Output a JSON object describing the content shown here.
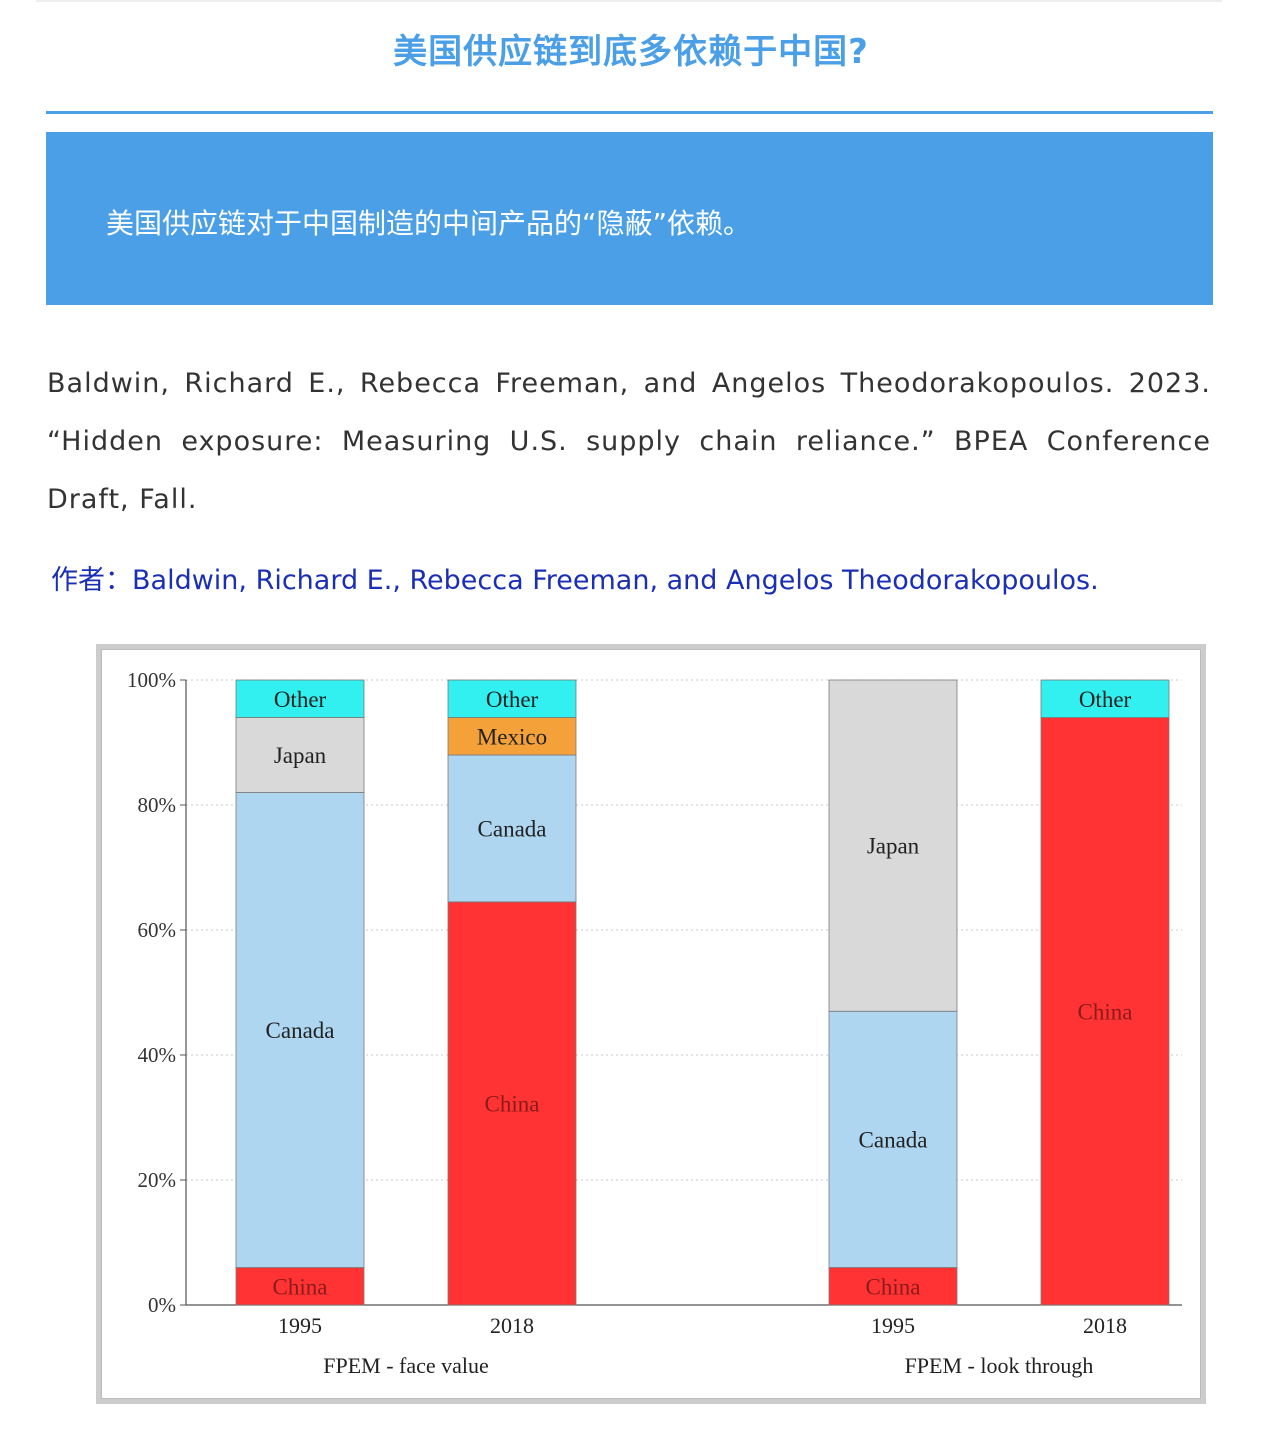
{
  "header": {
    "title": "美国供应链到底多依赖于中国?"
  },
  "banner": {
    "text": "美国供应链对于中国制造的中间产品的“隐蔽”依赖。"
  },
  "citation": {
    "text": "Baldwin, Richard E., Rebecca Freeman, and Angelos Theodorakopoulos. 2023. “Hidden exposure: Measuring U.S. supply chain reliance.”  BPEA Conference Draft, Fall."
  },
  "author": {
    "text": "作者：Baldwin, Richard E., Rebecca Freeman, and Angelos Theodorakopoulos."
  },
  "colors": {
    "accent": "#4a9fe6",
    "author_link": "#1a2fb5",
    "China": "#ff3333",
    "Canada": "#aed6f1",
    "Japan": "#d9d9d9",
    "Mexico": "#f4a13a",
    "Other": "#33f0f0"
  },
  "chart_data": {
    "type": "bar",
    "stacked": true,
    "ylim": [
      0,
      100
    ],
    "y_ticks": [
      "0%",
      "20%",
      "40%",
      "60%",
      "80%",
      "100%"
    ],
    "grid": true,
    "groups": [
      {
        "label": "FPEM - face value",
        "bars": [
          {
            "year": "1995",
            "segments": [
              {
                "name": "China",
                "value": 6
              },
              {
                "name": "Canada",
                "value": 76
              },
              {
                "name": "Japan",
                "value": 12
              },
              {
                "name": "Other",
                "value": 6
              }
            ]
          },
          {
            "year": "2018",
            "segments": [
              {
                "name": "China",
                "value": 64.5
              },
              {
                "name": "Canada",
                "value": 23.5
              },
              {
                "name": "Mexico",
                "value": 6
              },
              {
                "name": "Other",
                "value": 6
              }
            ]
          }
        ]
      },
      {
        "label": "FPEM - look through",
        "bars": [
          {
            "year": "1995",
            "segments": [
              {
                "name": "China",
                "value": 6
              },
              {
                "name": "Canada",
                "value": 41
              },
              {
                "name": "Japan",
                "value": 53
              }
            ]
          },
          {
            "year": "2018",
            "segments": [
              {
                "name": "China",
                "value": 94
              },
              {
                "name": "Other",
                "value": 6
              }
            ]
          }
        ]
      }
    ]
  }
}
